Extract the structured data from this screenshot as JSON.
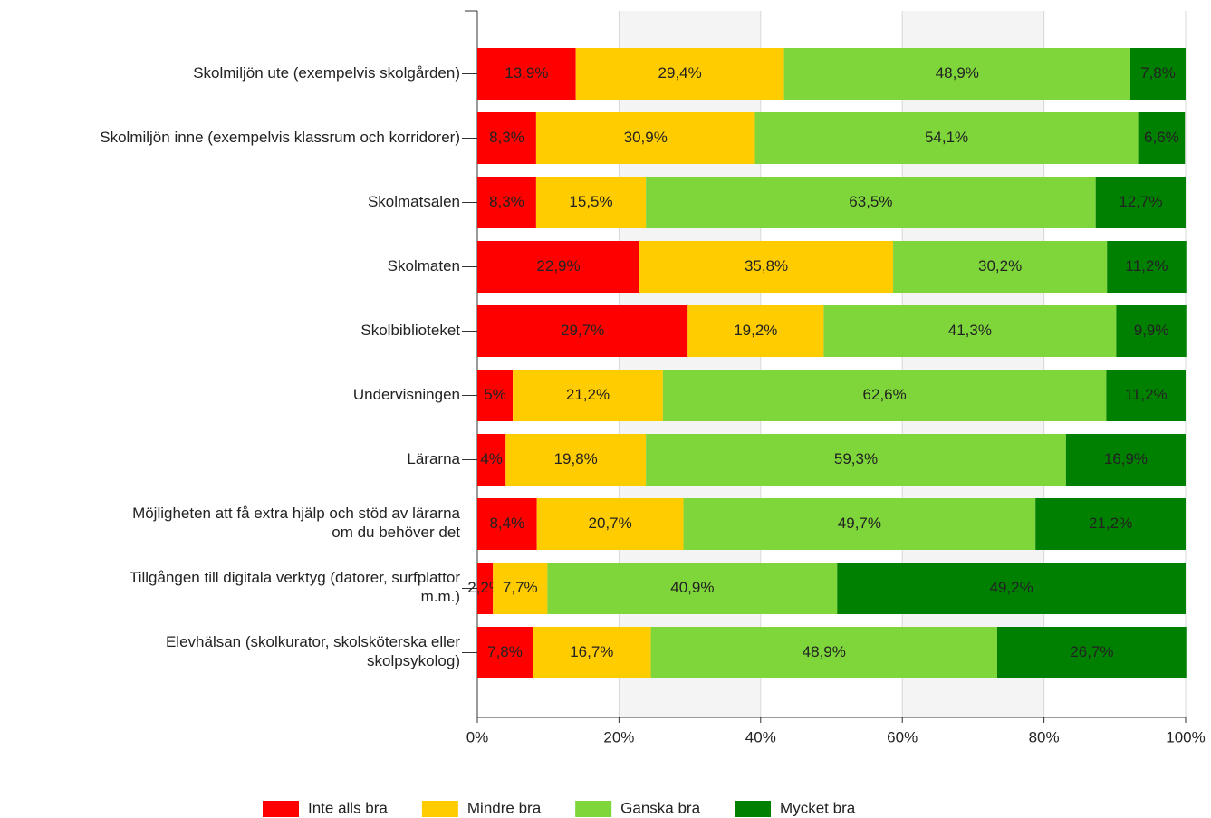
{
  "chart_data": {
    "type": "stacked-bar-horizontal",
    "categories": [
      "Skolmiljön ute (exempelvis skolgården)",
      "Skolmiljön inne (exempelvis klassrum och korridorer)",
      "Skolmatsalen",
      "Skolmaten",
      "Skolbiblioteket",
      "Undervisningen",
      "Lärarna",
      "Möjligheten att få extra hjälp och stöd av lärarna\nom du behöver det",
      "Tillgången till digitala verktyg (datorer, surfplattor\nm.m.)",
      "Elevhälsan (skolkurator, skolsköterska eller\nskolpsykolog)"
    ],
    "series": [
      {
        "name": "Inte alls bra",
        "color": "#ff0000",
        "values": [
          13.9,
          8.3,
          8.3,
          22.9,
          29.7,
          5,
          4,
          8.4,
          2.2,
          7.8
        ],
        "value_labels": [
          "13,9%",
          "8,3%",
          "8,3%",
          "22,9%",
          "29,7%",
          "5%",
          "4%",
          "8,4%",
          "2,2%",
          "7,8%"
        ]
      },
      {
        "name": "Mindre bra",
        "color": "#ffcc00",
        "values": [
          29.4,
          30.9,
          15.5,
          35.8,
          19.2,
          21.2,
          19.8,
          20.7,
          7.7,
          16.7
        ],
        "value_labels": [
          "29,4%",
          "30,9%",
          "15,5%",
          "35,8%",
          "19,2%",
          "21,2%",
          "19,8%",
          "20,7%",
          "7,7%",
          "16,7%"
        ]
      },
      {
        "name": "Ganska bra",
        "color": "#7ed63b",
        "values": [
          48.9,
          54.1,
          63.5,
          30.2,
          41.3,
          62.6,
          59.3,
          49.7,
          40.9,
          48.9
        ],
        "value_labels": [
          "48,9%",
          "54,1%",
          "63,5%",
          "30,2%",
          "41,3%",
          "62,6%",
          "59,3%",
          "49,7%",
          "40,9%",
          "48,9%"
        ]
      },
      {
        "name": "Mycket bra",
        "color": "#008000",
        "values": [
          7.8,
          6.6,
          12.7,
          11.2,
          9.9,
          11.2,
          16.9,
          21.2,
          49.2,
          26.7
        ],
        "value_labels": [
          "7,8%",
          "6,6%",
          "12,7%",
          "11,2%",
          "9,9%",
          "11,2%",
          "16,9%",
          "21,2%",
          "49,2%",
          "26,7%"
        ]
      }
    ],
    "xlim": [
      0,
      100
    ],
    "xticks": [
      {
        "value": 0,
        "label": "0%"
      },
      {
        "value": 20,
        "label": "20%"
      },
      {
        "value": 40,
        "label": "40%"
      },
      {
        "value": 60,
        "label": "60%"
      },
      {
        "value": 80,
        "label": "80%"
      },
      {
        "value": 100,
        "label": "100%"
      }
    ],
    "grid": true,
    "legend": "bottom"
  }
}
